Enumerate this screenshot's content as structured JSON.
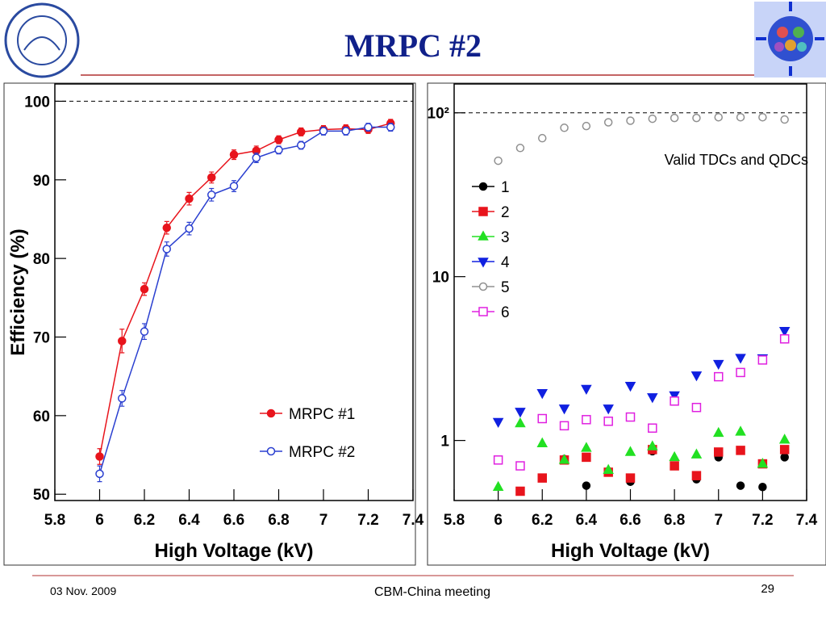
{
  "header": {
    "title": "MRPC #2"
  },
  "footer": {
    "date": "03 Nov. 2009",
    "event": "CBM-China meeting",
    "page": "29"
  },
  "chart_data": [
    {
      "type": "line",
      "xlabel": "High Voltage (kV)",
      "ylabel": "Efficiency (%)",
      "xlim": [
        5.8,
        7.4
      ],
      "xticks": [
        5.8,
        6,
        6.2,
        6.4,
        6.6,
        6.8,
        7,
        7.2,
        7.4
      ],
      "ylim": [
        49.2,
        102.2
      ],
      "yticks": [
        50,
        60,
        70,
        80,
        90,
        100
      ],
      "reference_line": 100,
      "legend": "lower right",
      "lines": true,
      "x": [
        6.0,
        6.1,
        6.2,
        6.3,
        6.4,
        6.5,
        6.6,
        6.7,
        6.8,
        6.9,
        7.0,
        7.1,
        7.2,
        7.3
      ],
      "series": [
        {
          "name": "MRPC #1",
          "color": "#e8141c",
          "marker": "circle-filled",
          "values": [
            54.8,
            69.5,
            76.1,
            83.9,
            87.6,
            90.3,
            93.2,
            93.7,
            95.1,
            96.1,
            96.4,
            96.5,
            96.4,
            97.2
          ],
          "errors": [
            1.0,
            1.5,
            0.8,
            0.8,
            0.8,
            0.7,
            0.6,
            0.6,
            0.5,
            0.5,
            0.5,
            0.5,
            0.5,
            0.5
          ]
        },
        {
          "name": "MRPC #2",
          "color": "#2a3fd0",
          "marker": "circle-open",
          "values": [
            52.6,
            62.2,
            70.7,
            81.2,
            83.8,
            88.1,
            89.2,
            92.8,
            93.8,
            94.4,
            96.2,
            96.2,
            96.7,
            96.7
          ],
          "errors": [
            1.0,
            1.0,
            1.0,
            0.9,
            0.8,
            0.8,
            0.7,
            0.6,
            0.5,
            0.5,
            0.5,
            0.5,
            0.5,
            0.5
          ]
        }
      ]
    },
    {
      "type": "scatter",
      "xlabel": "High Voltage (kV)",
      "annotation": "Valid TDCs and QDCs",
      "xlim": [
        5.8,
        7.4
      ],
      "xticks": [
        5.8,
        6,
        6.2,
        6.4,
        6.6,
        6.8,
        7,
        7.2,
        7.4
      ],
      "ylim": [
        0.43,
        150
      ],
      "log_y": true,
      "yticks": [
        1,
        10,
        {
          "value": 100,
          "label": "10²"
        }
      ],
      "reference_line": 100,
      "legend": "upper left",
      "lines": false,
      "x": [
        6.0,
        6.1,
        6.2,
        6.3,
        6.4,
        6.5,
        6.6,
        6.7,
        6.8,
        6.9,
        7.0,
        7.1,
        7.2,
        7.3
      ],
      "series": [
        {
          "name": "1",
          "color": "#000000",
          "marker": "circle-filled",
          "values": [
            null,
            null,
            null,
            0.77,
            0.53,
            0.65,
            0.56,
            0.86,
            0.7,
            0.58,
            0.79,
            0.53,
            0.52,
            0.79
          ]
        },
        {
          "name": "2",
          "color": "#e8141c",
          "marker": "square-filled",
          "values": [
            null,
            0.49,
            0.59,
            0.76,
            0.79,
            0.64,
            0.59,
            0.88,
            0.7,
            0.61,
            0.85,
            0.87,
            0.72,
            0.88
          ]
        },
        {
          "name": "3",
          "color": "#22e022",
          "marker": "triangle-up",
          "values": [
            0.52,
            1.27,
            0.96,
            0.76,
            0.9,
            0.66,
            0.85,
            0.92,
            0.79,
            0.82,
            1.11,
            1.13,
            0.72,
            1.01
          ]
        },
        {
          "name": "4",
          "color": "#1020e0",
          "marker": "triangle-down",
          "values": [
            1.3,
            1.5,
            1.95,
            1.57,
            2.07,
            1.57,
            2.16,
            1.84,
            1.89,
            2.5,
            2.94,
            3.2,
            3.18,
            4.67
          ]
        },
        {
          "name": "5",
          "color": "#909090",
          "marker": "circle-open",
          "values": [
            51,
            61,
            70,
            81,
            83,
            87.5,
            89.5,
            92,
            93,
            93,
            94,
            94,
            94,
            91
          ]
        },
        {
          "name": "6",
          "color": "#e020e0",
          "marker": "square-open",
          "values": [
            0.76,
            0.7,
            1.36,
            1.23,
            1.34,
            1.31,
            1.39,
            1.19,
            1.74,
            1.59,
            2.45,
            2.6,
            3.1,
            4.17
          ]
        }
      ]
    }
  ]
}
